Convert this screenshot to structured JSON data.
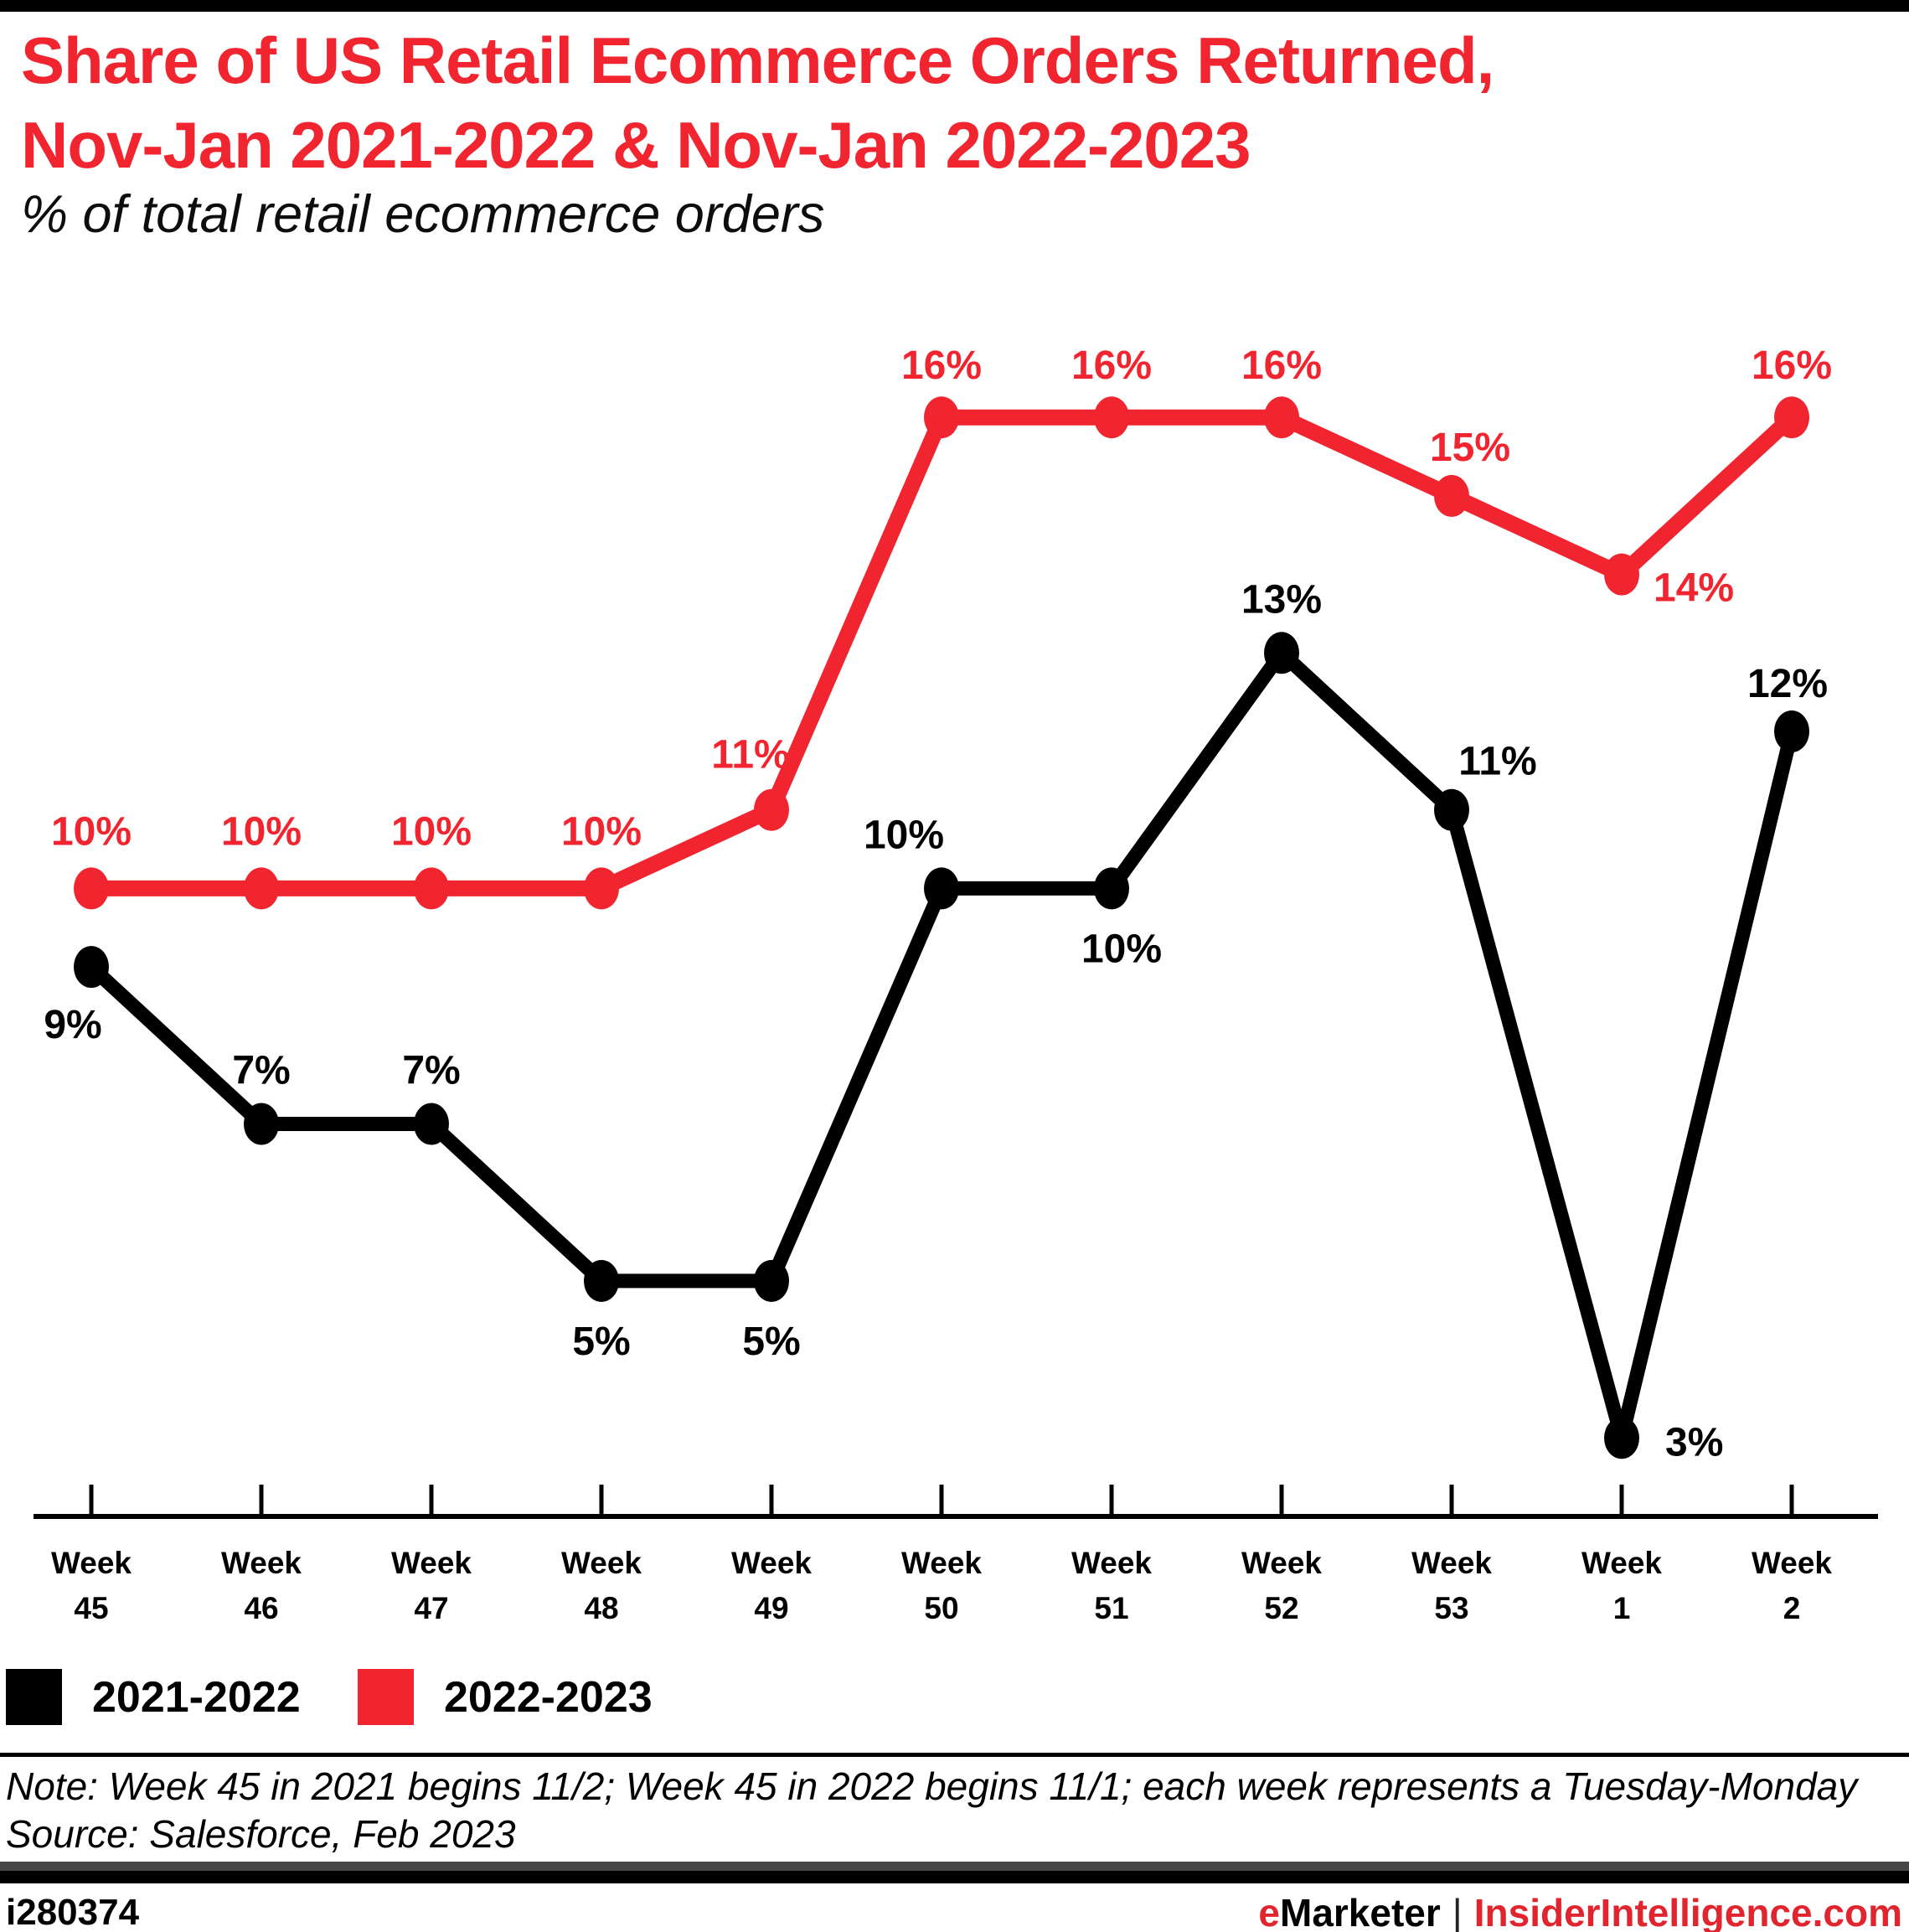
{
  "header": {
    "title_line1": "Share of US Retail Ecommerce Orders Returned,",
    "title_line2": "Nov-Jan 2021-2022 & Nov-Jan 2022-2023",
    "subtitle": "% of total retail ecommerce orders"
  },
  "chart_data": {
    "type": "line",
    "title": "Share of US Retail Ecommerce Orders Returned, Nov-Jan 2021-2022 & Nov-Jan 2022-2023",
    "ylabel": "% of total retail ecommerce orders",
    "categories": [
      "Week 45",
      "Week 46",
      "Week 47",
      "Week 48",
      "Week 49",
      "Week 50",
      "Week 51",
      "Week 52",
      "Week 53",
      "Week 1",
      "Week 2"
    ],
    "series": [
      {
        "name": "2021-2022",
        "color": "#000000",
        "values": [
          9,
          7,
          7,
          5,
          5,
          10,
          10,
          13,
          11,
          3,
          12
        ]
      },
      {
        "name": "2022-2023",
        "color": "#f0252f",
        "values": [
          10,
          10,
          10,
          10,
          11,
          16,
          16,
          16,
          15,
          14,
          16
        ]
      }
    ],
    "value_suffix": "%",
    "ylim": [
      2,
      17.5
    ],
    "grid": false,
    "y_axis": "hidden",
    "data_labels": "shown",
    "legend_position": "bottom-left"
  },
  "footnote": {
    "note": "Note: Week 45 in 2021 begins 11/2; Week 45 in 2022 begins 11/1; each week represents a Tuesday-Monday",
    "source": "Source: Salesforce, Feb 2023"
  },
  "footer": {
    "chart_id": "i280374",
    "brand_prefix": "e",
    "brand_name": "Marketer",
    "separator": "|",
    "brand_site": "InsiderIntelligence.com"
  },
  "colors": {
    "accent_red": "#f0252f",
    "series_black": "#000000",
    "footer_bar_gray": "#474747"
  }
}
